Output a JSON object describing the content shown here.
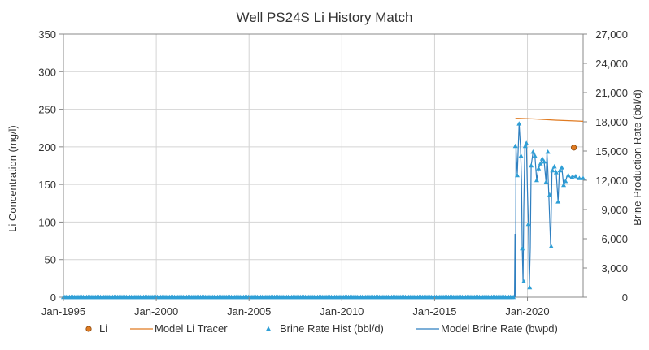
{
  "chart_data": {
    "type": "line",
    "title": "Well PS24S Li History Match",
    "xlabel": "",
    "ylabel_left": "Li Concentration (mg/l)",
    "ylabel_right": "Brine Production Rate (bbl/d)",
    "x_range": [
      1995.0,
      2023.0
    ],
    "ylim_left": [
      0,
      350
    ],
    "ylim_right": [
      0,
      27000
    ],
    "x_ticks": [
      {
        "x": 1995,
        "label": "Jan-1995"
      },
      {
        "x": 2000,
        "label": "Jan-2000"
      },
      {
        "x": 2005,
        "label": "Jan-2005"
      },
      {
        "x": 2010,
        "label": "Jan-2010"
      },
      {
        "x": 2015,
        "label": "Jan-2015"
      },
      {
        "x": 2020,
        "label": "Jan-2020"
      }
    ],
    "y_ticks_left": [
      0,
      50,
      100,
      150,
      200,
      250,
      300,
      350
    ],
    "y_tick_labels_left": [
      "0",
      "50",
      "100",
      "150",
      "200",
      "250",
      "300",
      "350"
    ],
    "y_ticks_right": [
      0,
      3000,
      6000,
      9000,
      12000,
      15000,
      18000,
      21000,
      24000,
      27000
    ],
    "y_tick_labels_right": [
      "0",
      "3,000",
      "6,000",
      "9,000",
      "12,000",
      "15,000",
      "18,000",
      "21,000",
      "24,000",
      "27,000"
    ],
    "grid": true,
    "legend_position": "bottom",
    "series": [
      {
        "name": "Li",
        "kind": "marker-circle",
        "axis": "left",
        "color": "#e07b22",
        "points": [
          [
            2022.5,
            199
          ]
        ]
      },
      {
        "name": "Model Li Tracer",
        "kind": "line",
        "axis": "left",
        "color": "#e07b22",
        "points": [
          [
            2019.35,
            238
          ],
          [
            2019.5,
            238
          ],
          [
            2020.5,
            237
          ],
          [
            2021.5,
            235.5
          ],
          [
            2022.5,
            234.5
          ],
          [
            2023.0,
            234
          ]
        ]
      },
      {
        "name": "Brine Rate Hist (bbl/d)",
        "kind": "marker-triangle",
        "axis": "right",
        "color": "#2f9fd6",
        "points": [
          [
            2019.35,
            15500
          ],
          [
            2019.45,
            12500
          ],
          [
            2019.55,
            17800
          ],
          [
            2019.65,
            14500
          ],
          [
            2019.72,
            5000
          ],
          [
            2019.8,
            1600
          ],
          [
            2019.88,
            15500
          ],
          [
            2019.94,
            15800
          ],
          [
            2020.05,
            7500
          ],
          [
            2020.12,
            1000
          ],
          [
            2020.2,
            13500
          ],
          [
            2020.3,
            14900
          ],
          [
            2020.4,
            14500
          ],
          [
            2020.5,
            12000
          ],
          [
            2020.6,
            13200
          ],
          [
            2020.7,
            13700
          ],
          [
            2020.8,
            14200
          ],
          [
            2020.9,
            13900
          ],
          [
            2021.0,
            11800
          ],
          [
            2021.1,
            14900
          ],
          [
            2021.2,
            10500
          ],
          [
            2021.28,
            5200
          ],
          [
            2021.35,
            13000
          ],
          [
            2021.45,
            13400
          ],
          [
            2021.55,
            12800
          ],
          [
            2021.65,
            9800
          ],
          [
            2021.75,
            13000
          ],
          [
            2021.85,
            13300
          ],
          [
            2021.95,
            11500
          ],
          [
            2022.05,
            11900
          ],
          [
            2022.2,
            12500
          ],
          [
            2022.4,
            12300
          ],
          [
            2022.6,
            12400
          ],
          [
            2022.8,
            12200
          ],
          [
            2023.0,
            12200
          ]
        ]
      },
      {
        "name": "Model Brine Rate (bwpd)",
        "kind": "line",
        "axis": "right",
        "color": "#2f7fc0",
        "points": [
          [
            1995.0,
            0
          ],
          [
            2019.3,
            0
          ],
          [
            2019.33,
            6500
          ],
          [
            2019.36,
            0
          ],
          [
            2019.38,
            15500
          ],
          [
            2019.45,
            12500
          ],
          [
            2019.55,
            17800
          ],
          [
            2019.62,
            15500
          ],
          [
            2019.68,
            12000
          ],
          [
            2019.72,
            5000
          ],
          [
            2019.76,
            1600
          ],
          [
            2019.8,
            9000
          ],
          [
            2019.86,
            15500
          ],
          [
            2019.94,
            15800
          ],
          [
            2020.0,
            11000
          ],
          [
            2020.05,
            7500
          ],
          [
            2020.1,
            1000
          ],
          [
            2020.15,
            5000
          ],
          [
            2020.2,
            13500
          ],
          [
            2020.3,
            14900
          ],
          [
            2020.4,
            14500
          ],
          [
            2020.5,
            12000
          ],
          [
            2020.6,
            13200
          ],
          [
            2020.7,
            13700
          ],
          [
            2020.8,
            14200
          ],
          [
            2020.9,
            13900
          ],
          [
            2021.0,
            11800
          ],
          [
            2021.05,
            14900
          ],
          [
            2021.1,
            13000
          ],
          [
            2021.15,
            10500
          ],
          [
            2021.25,
            5200
          ],
          [
            2021.32,
            13000
          ],
          [
            2021.45,
            13400
          ],
          [
            2021.55,
            12800
          ],
          [
            2021.65,
            9800
          ],
          [
            2021.72,
            13000
          ],
          [
            2021.85,
            13300
          ],
          [
            2021.95,
            11500
          ],
          [
            2022.05,
            11900
          ],
          [
            2022.15,
            12500
          ],
          [
            2022.3,
            12300
          ],
          [
            2022.5,
            12400
          ],
          [
            2022.7,
            12200
          ],
          [
            2023.0,
            12200
          ]
        ]
      }
    ]
  }
}
